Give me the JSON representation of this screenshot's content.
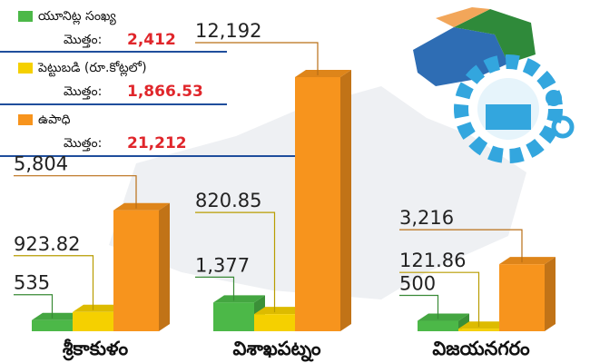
{
  "chart_data": {
    "type": "bar3d",
    "categories": [
      "శ్రీకాకుళం",
      "విశాఖపట్నం",
      "విజయనగరం"
    ],
    "total_text": "మొత్తం:",
    "series": [
      {
        "name": "యూనిట్ల సంఖ్య",
        "color": "#4cb848",
        "values": [
          535,
          1377,
          500
        ],
        "value_labels": [
          "535",
          "1,377",
          "500"
        ],
        "total": 2412,
        "total_label": "2,412"
      },
      {
        "name": "పెట్టుబడి (రూ.కోట్లలో)",
        "color": "#f5d000",
        "values": [
          923.82,
          820.85,
          121.86
        ],
        "total": 1866.53,
        "total_label": "1,866.53"
      },
      {
        "name": "ఉపాధి",
        "color": "#f7941d",
        "values": [
          5804,
          12192,
          3216
        ],
        "value_labels": [
          "5,804",
          "12,192",
          "3,216"
        ],
        "total": 21212,
        "total_label": "21,212"
      }
    ]
  }
}
